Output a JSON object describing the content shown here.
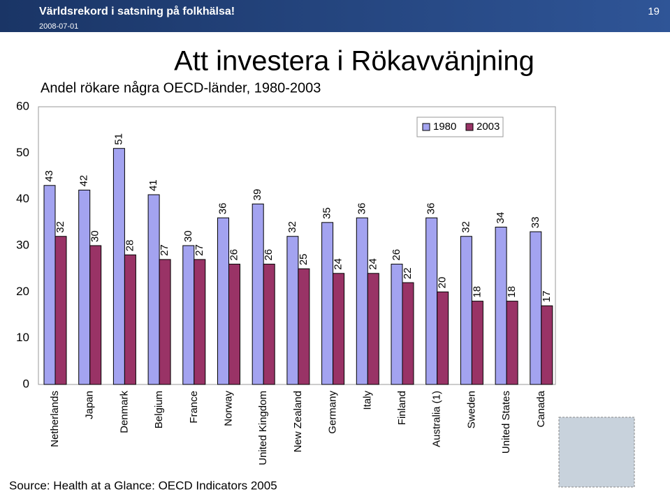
{
  "header": {
    "title": "Världsrekord i satsning på folkhälsa!",
    "date": "2008-07-01",
    "page": "19"
  },
  "chart_data": {
    "type": "bar",
    "title": "Att investera i Rökavvänjning",
    "subtitle": "Andel rökare några OECD-länder, 1980-2003",
    "categories": [
      "Netherlands",
      "Japan",
      "Denmark",
      "Belgium",
      "France",
      "Norway",
      "United Kingdom",
      "New Zealand",
      "Germany",
      "Italy",
      "Finland",
      "Australia (1)",
      "Sweden",
      "United States",
      "Canada"
    ],
    "series": [
      {
        "name": "1980",
        "color": "#a3a3f0",
        "values": [
          43,
          42,
          51,
          41,
          30,
          36,
          39,
          32,
          35,
          36,
          26,
          36,
          32,
          34,
          33
        ]
      },
      {
        "name": "2003",
        "color": "#993366",
        "values": [
          32,
          30,
          28,
          27,
          27,
          26,
          26,
          25,
          24,
          24,
          22,
          20,
          18,
          18,
          17
        ]
      }
    ],
    "ylim": [
      0,
      60
    ],
    "yticks": [
      0,
      10,
      20,
      30,
      40,
      50,
      60
    ],
    "legend": "top-right",
    "source": "Source: Health at a Glance: OECD Indicators 2005"
  }
}
